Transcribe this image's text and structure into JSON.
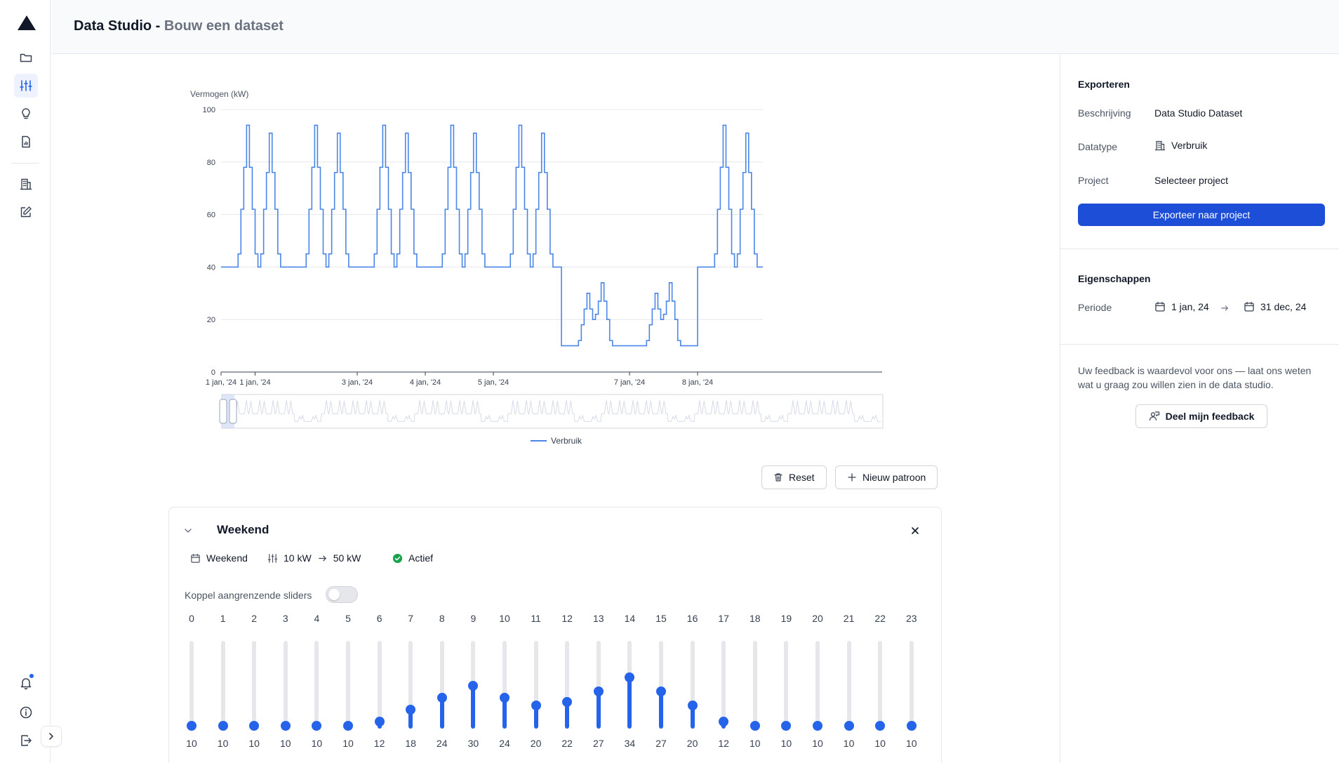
{
  "header": {
    "title": "Data Studio -",
    "subtitle": "Bouw een dataset"
  },
  "sidebar": {
    "items": [
      "folder-icon",
      "sliders-icon",
      "lightbulb-icon",
      "report-icon",
      "building-icon",
      "edit-icon"
    ],
    "bottom": [
      "bell-icon",
      "info-icon",
      "logout-icon"
    ]
  },
  "chart_data": {
    "type": "line",
    "ylabel": "Vermogen (kW)",
    "ylim": [
      0,
      100
    ],
    "yticks": [
      0,
      20,
      40,
      60,
      80,
      100
    ],
    "xtick_labels": [
      "1 jan, '24",
      "1 jan, '24",
      "3 jan, '24",
      "4 jan, '24",
      "5 jan, '24",
      "7 jan, '24",
      "8 jan, '24"
    ],
    "legend": "bottom-center",
    "series": [
      {
        "name": "Verbruik",
        "color": "#4a86e8",
        "weekday_profile": [
          40,
          40,
          40,
          40,
          40,
          40,
          45,
          62,
          78,
          94,
          78,
          62,
          45,
          40,
          45,
          62,
          76,
          91,
          76,
          62,
          45,
          40,
          40,
          40
        ],
        "weekend_profile": [
          10,
          10,
          10,
          10,
          10,
          10,
          12,
          18,
          24,
          30,
          24,
          20,
          22,
          27,
          34,
          27,
          20,
          12,
          10,
          10,
          10,
          10,
          10,
          10
        ],
        "day_types": [
          "weekday",
          "weekday",
          "weekday",
          "weekday",
          "weekday",
          "weekend",
          "weekend",
          "weekday"
        ]
      }
    ]
  },
  "buttons": {
    "reset": "Reset",
    "new_pattern": "Nieuw patroon"
  },
  "pattern": {
    "title": "Weekend",
    "days": "Weekend",
    "range_from": "10 kW",
    "range_to": "50 kW",
    "status": "Actief",
    "toggle_label": "Koppel aangrenzende sliders",
    "hours": [
      "0",
      "1",
      "2",
      "3",
      "4",
      "5",
      "6",
      "7",
      "8",
      "9",
      "10",
      "11",
      "12",
      "13",
      "14",
      "15",
      "16",
      "17",
      "18",
      "19",
      "20",
      "21",
      "22",
      "23"
    ],
    "values": [
      10,
      10,
      10,
      10,
      10,
      10,
      12,
      18,
      24,
      30,
      24,
      20,
      22,
      27,
      34,
      27,
      20,
      12,
      10,
      10,
      10,
      10,
      10,
      10
    ],
    "slider_min": 10,
    "slider_max": 50
  },
  "right_panel": {
    "export_title": "Exporteren",
    "description_label": "Beschrijving",
    "description_value": "Data Studio Dataset",
    "datatype_label": "Datatype",
    "datatype_value": "Verbruik",
    "project_label": "Project",
    "project_value": "Selecteer project",
    "export_button": "Exporteer naar project",
    "properties_title": "Eigenschappen",
    "period_label": "Periode",
    "period_from": "1 jan, 24",
    "period_to": "31 dec, 24",
    "feedback_text": "Uw feedback is waardevol voor ons — laat ons weten wat u graag zou willen zien in de data studio.",
    "feedback_button": "Deel mijn feedback"
  }
}
